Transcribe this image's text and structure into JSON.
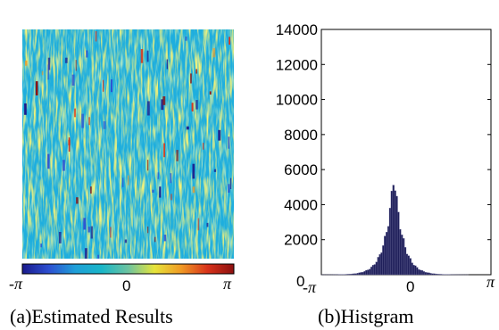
{
  "chart_data": [
    {
      "type": "heatmap",
      "caption": "(a)Estimated Results",
      "colorbar": {
        "ticks": [
          "-π",
          "0",
          "π"
        ],
        "range": [
          -3.1416,
          3.1416
        ],
        "colors": [
          "#1a1a8c",
          "#2d4fd1",
          "#1e9fd8",
          "#19b6c8",
          "#6cc3a0",
          "#e6e43a",
          "#f09a24",
          "#d8321a",
          "#8c1010"
        ]
      },
      "dominant_value": -0.5,
      "texture": "vertical streaks, mostly cyan-blue with yellow-green bands and sparse red/dark-blue speckles"
    },
    {
      "type": "bar",
      "caption": "(b)Histgram",
      "xlim": [
        -3.1416,
        3.1416
      ],
      "ylim": [
        0,
        14000
      ],
      "x_tick_labels": [
        "-π",
        "0",
        "π"
      ],
      "y_tick_labels": [
        "0",
        "2000",
        "4000",
        "6000",
        "8000",
        "10000",
        "12000",
        "14000"
      ],
      "bar_color": "#1f1f5a",
      "bar_edge_color": "#6b6b9a",
      "bins": 100,
      "distribution": {
        "center": -0.45,
        "peak": 6300,
        "half_width": 0.32,
        "shape": "laplace-like"
      }
    }
  ]
}
